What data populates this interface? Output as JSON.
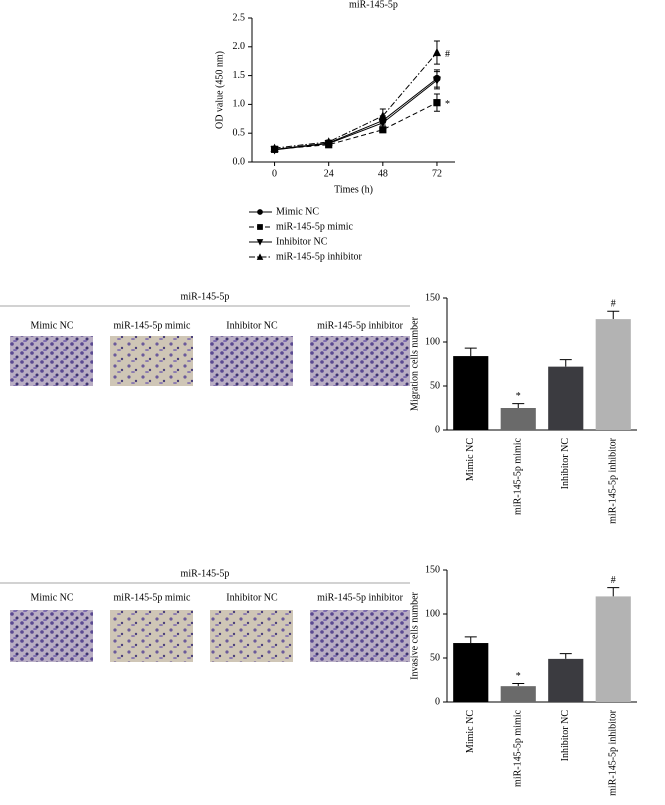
{
  "chart_data": [
    {
      "type": "line",
      "title": "miR-145-5p",
      "xlabel": "Times (h)",
      "ylabel": "OD value (450 nm)",
      "x": [
        0,
        24,
        48,
        72
      ],
      "xlim": [
        -10,
        80
      ],
      "xticks": [
        0,
        24,
        48,
        72
      ],
      "ylim": [
        0,
        2.5
      ],
      "yticks": [
        {
          "value": 0,
          "label": "0.0"
        },
        0.5,
        {
          "value": 1,
          "label": "1.0"
        },
        1.5,
        {
          "value": 2,
          "label": "2.0"
        },
        2.5
      ],
      "series": [
        {
          "name": "Mimic NC",
          "color": "#000000",
          "marker": "circle",
          "line_style": "solid",
          "values": [
            0.22,
            0.33,
            0.72,
            1.45
          ],
          "errors": [
            0.03,
            0.03,
            0.08,
            0.15
          ],
          "annotations": [
            null,
            null,
            null,
            null
          ]
        },
        {
          "name": "miR-145-5p mimic",
          "color": "#000000",
          "marker": "square",
          "line_style": "dashed",
          "values": [
            0.22,
            0.3,
            0.56,
            1.03
          ],
          "errors": [
            0.03,
            0.03,
            0.04,
            0.15
          ],
          "annotations": [
            null,
            null,
            null,
            "*"
          ]
        },
        {
          "name": "Inhibitor NC",
          "color": "#000000",
          "marker": "triangle-down",
          "line_style": "solid",
          "values": [
            0.21,
            0.32,
            0.68,
            1.42
          ],
          "errors": [
            0.03,
            0.03,
            0.08,
            0.15
          ],
          "annotations": [
            null,
            null,
            null,
            null
          ]
        },
        {
          "name": "miR-145-5p inhibitor",
          "color": "#000000",
          "marker": "triangle-up",
          "line_style": "dashdot",
          "values": [
            0.24,
            0.35,
            0.8,
            1.9
          ],
          "errors": [
            0.03,
            0.03,
            0.12,
            0.2
          ],
          "annotations": [
            null,
            null,
            null,
            "#"
          ]
        }
      ]
    },
    {
      "type": "bar",
      "ylabel": "Migration cells number",
      "categories": [
        "Mimic NC",
        "miR-145-5p mimic",
        "Inhibitor NC",
        "miR-145-5p inhibitor"
      ],
      "values": [
        84,
        25,
        72,
        126
      ],
      "errors": [
        9,
        5,
        8,
        9
      ],
      "annotations": [
        null,
        "*",
        null,
        "#"
      ],
      "colors": [
        "#000000",
        "#6a6a6a",
        "#3b3b40",
        "#b3b3b3"
      ],
      "ylim": [
        0,
        150
      ],
      "yticks": [
        0,
        50,
        100,
        150
      ]
    },
    {
      "type": "bar",
      "ylabel": "Invasive cells number",
      "categories": [
        "Mimic NC",
        "miR-145-5p mimic",
        "Inhibitor NC",
        "miR-145-5p inhibitor"
      ],
      "values": [
        67,
        18,
        49,
        120
      ],
      "errors": [
        7,
        3,
        6,
        10
      ],
      "annotations": [
        null,
        "*",
        null,
        "#"
      ],
      "colors": [
        "#000000",
        "#6a6a6a",
        "#3b3b40",
        "#b3b3b3"
      ],
      "ylim": [
        0,
        150
      ],
      "yticks": [
        0,
        50,
        100,
        150
      ]
    }
  ],
  "migration_panel": {
    "title": "miR-145-5p",
    "labels": [
      "Mimic NC",
      "miR-145-5p mimic",
      "Inhibitor NC",
      "miR-145-5p inhibitor"
    ]
  },
  "invasion_panel": {
    "title": "miR-145-5p",
    "labels": [
      "Mimic NC",
      "miR-145-5p mimic",
      "Inhibitor NC",
      "miR-145-5p inhibitor"
    ]
  }
}
